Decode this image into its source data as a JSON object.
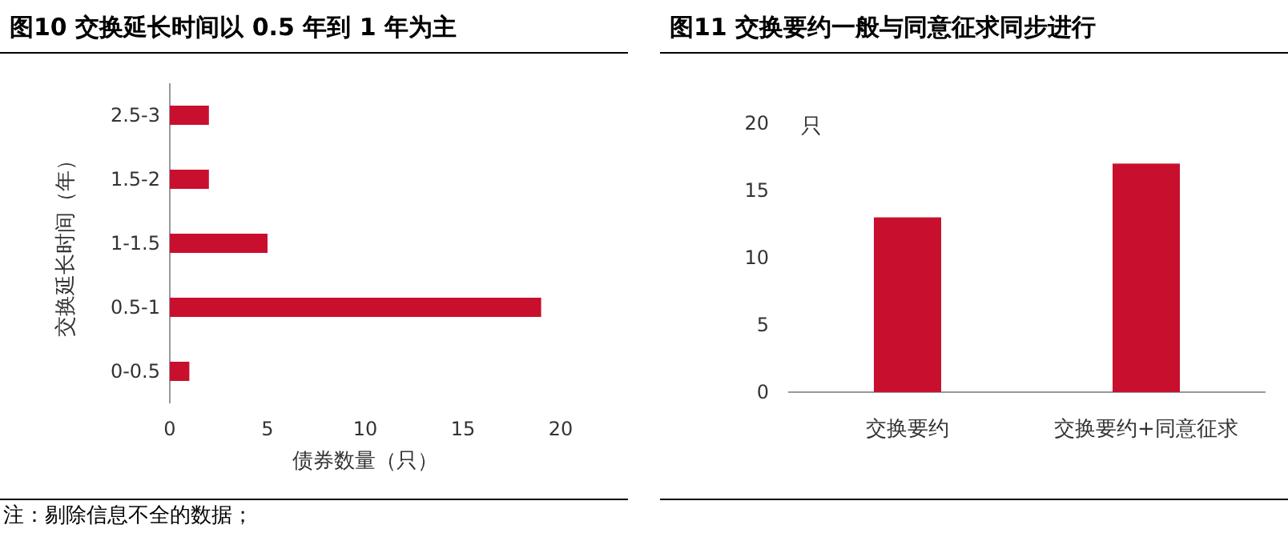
{
  "chart_data": [
    {
      "type": "bar",
      "orientation": "horizontal",
      "title": "图10  交换延长时间以 0.5 年到 1 年为主",
      "xlabel": "债券数量（只）",
      "ylabel": "交换延长时间（年）",
      "categories": [
        "2.5-3",
        "1.5-2",
        "1-1.5",
        "0.5-1",
        "0-0.5"
      ],
      "values": [
        2,
        2,
        5,
        19,
        1
      ],
      "color": "#c8102e",
      "xlim": [
        0,
        20
      ],
      "xticks": [
        0,
        5,
        10,
        15,
        20
      ],
      "annotations": [
        "注：剔除信息不全的数据；"
      ]
    },
    {
      "type": "bar",
      "title": "图11  交换要约一般与同意征求同步进行",
      "ylabel": "只",
      "categories": [
        "交换要约",
        "交换要约+同意征求"
      ],
      "values": [
        13,
        17
      ],
      "color": "#c8102e",
      "ylim": [
        0,
        20
      ],
      "yticks": [
        0,
        5,
        10,
        15,
        20
      ]
    }
  ]
}
